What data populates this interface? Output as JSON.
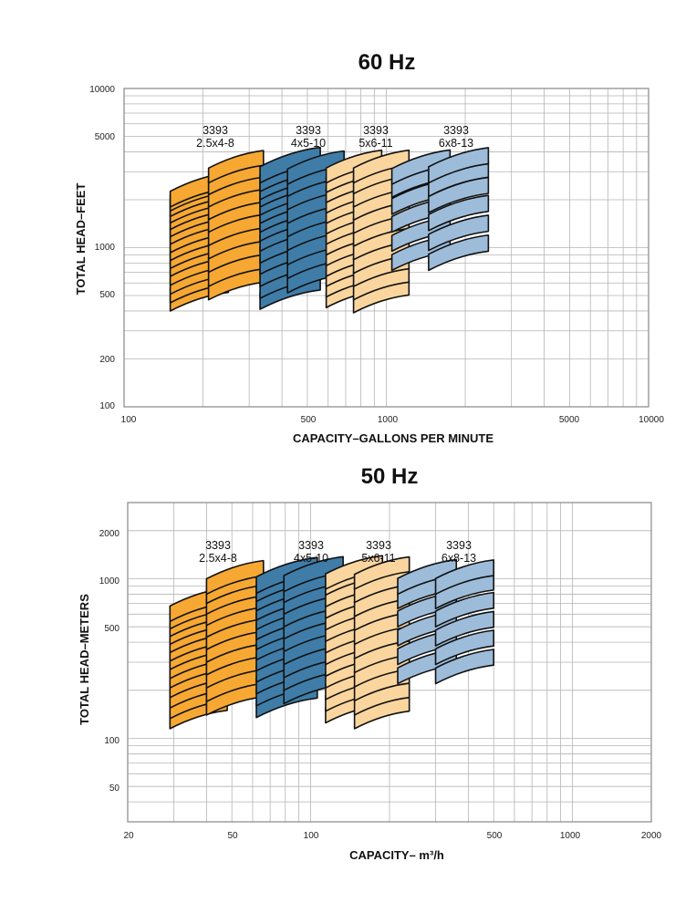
{
  "colors": {
    "orange": "#F6A832",
    "blue": "#3F7DA8",
    "tan": "#FAD59E",
    "light_blue": "#9DBCDA",
    "grid": "#b5b5b5",
    "frame": "#909090"
  },
  "chart_data": [
    {
      "type": "area",
      "title": "60 Hz",
      "xlabel": "CAPACITY–GALLONS PER MINUTE",
      "ylabel": "TOTAL HEAD–FEET",
      "scale": "log-log",
      "xlim": [
        100,
        10000
      ],
      "ylim": [
        100,
        10000
      ],
      "x_ticks": [
        "100",
        "500",
        "1000",
        "5000",
        "10000"
      ],
      "y_ticks": [
        "100",
        "200",
        "500",
        "1000",
        "5000",
        "10000"
      ],
      "x_tick_values": [
        100,
        500,
        1000,
        5000,
        10000
      ],
      "y_tick_values": [
        100,
        200,
        500,
        1000,
        5000,
        10000
      ],
      "grid": true,
      "groups": [
        {
          "model": "3393",
          "size": "2.5x4-8",
          "color": "orange",
          "columns": [
            {
              "x": [
                150,
                250
              ],
              "head": [
                400,
                450,
                510,
                580,
                660,
                740,
                830,
                930,
                1050,
                1170,
                1300,
                1430,
                1570,
                1700,
                1800
              ]
            },
            {
              "x": [
                210,
                340
              ],
              "head": [
                470,
                570,
                700,
                850,
                1030,
                1250,
                1500,
                1800,
                2150,
                2550
              ]
            }
          ]
        },
        {
          "model": "3393",
          "size": "4x5-10",
          "color": "blue",
          "columns": [
            {
              "x": [
                330,
                560
              ],
              "head": [
                410,
                480,
                570,
                680,
                800,
                950,
                1100,
                1250,
                1420,
                1600,
                1800,
                2000,
                2250,
                2550
              ]
            },
            {
              "x": [
                420,
                690
              ],
              "head": [
                520,
                640,
                780,
                960,
                1170,
                1420,
                1730,
                2100,
                2500
              ]
            }
          ]
        },
        {
          "model": "3393",
          "size": "5x6-11",
          "color": "tan",
          "columns": [
            {
              "x": [
                590,
                960
              ],
              "head": [
                420,
                490,
                570,
                660,
                770,
                900,
                1050,
                1220,
                1420,
                1650,
                1920,
                2220,
                2550
              ]
            },
            {
              "x": [
                750,
                1220
              ],
              "head": [
                390,
                470,
                570,
                690,
                840,
                1020,
                1230,
                1490,
                1800,
                2180,
                2550
              ]
            }
          ]
        },
        {
          "model": "3393",
          "size": "6x8-13",
          "color": "light_blue",
          "columns": [
            {
              "x": [
                1050,
                1750
              ],
              "head": [
                720,
                950,
                1250,
                1620,
                2070,
                2500
              ]
            },
            {
              "x": [
                1450,
                2450
              ],
              "head": [
                720,
                960,
                1280,
                1660,
                2100,
                2550
              ]
            }
          ]
        }
      ]
    },
    {
      "type": "area",
      "title": "50 Hz",
      "xlabel": "CAPACITY– m³/h",
      "ylabel": "TOTAL HEAD–METERS",
      "scale": "log-log",
      "xlim": [
        20,
        2000
      ],
      "ylim": [
        30,
        3000
      ],
      "x_ticks": [
        "20",
        "50",
        "100",
        "500",
        "1000",
        "2000"
      ],
      "y_ticks": [
        "50",
        "100",
        "500",
        "1000",
        "2000"
      ],
      "x_tick_values": [
        20,
        50,
        100,
        500,
        1000,
        2000
      ],
      "y_tick_values": [
        50,
        100,
        500,
        1000,
        2000
      ],
      "grid": true,
      "groups": [
        {
          "model": "3393",
          "size": "2.5x4-8",
          "color": "orange",
          "columns": [
            {
              "x": [
                29,
                48
              ],
              "head": [
                115,
                133,
                155,
                180,
                207,
                237,
                270,
                305,
                345,
                388,
                435,
                485,
                540
              ]
            },
            {
              "x": [
                40,
                66
              ],
              "head": [
                140,
                170,
                207,
                250,
                300,
                360,
                430,
                510,
                600,
                700,
                800
              ]
            }
          ]
        },
        {
          "model": "3393",
          "size": "4x5-10",
          "color": "blue",
          "columns": [
            {
              "x": [
                62,
                106
              ],
              "head": [
                135,
                160,
                190,
                225,
                265,
                310,
                360,
                415,
                480,
                550,
                630,
                720,
                810
              ]
            },
            {
              "x": [
                79,
                133
              ],
              "head": [
                165,
                200,
                240,
                290,
                350,
                420,
                500,
                600,
                710,
                830
              ]
            }
          ]
        },
        {
          "model": "3393",
          "size": "5x6-11",
          "color": "tan",
          "columns": [
            {
              "x": [
                114,
                188
              ],
              "head": [
                125,
                148,
                175,
                207,
                245,
                290,
                343,
                405,
                478,
                565,
                667,
                790,
                860
              ]
            },
            {
              "x": [
                147,
                238
              ],
              "head": [
                115,
                140,
                172,
                210,
                258,
                316,
                388,
                475,
                580,
                710,
                860
              ]
            }
          ]
        },
        {
          "model": "3393",
          "size": "6x8-13",
          "color": "light_blue",
          "columns": [
            {
              "x": [
                215,
                360
              ],
              "head": [
                220,
                290,
                380,
                500,
                650,
                800
              ]
            },
            {
              "x": [
                300,
                500
              ],
              "head": [
                220,
                290,
                380,
                500,
                650,
                800
              ]
            }
          ]
        }
      ]
    }
  ]
}
